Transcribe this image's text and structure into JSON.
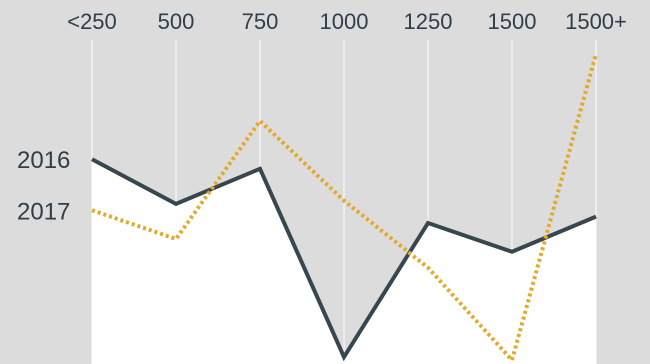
{
  "chart_data": {
    "type": "line",
    "title": "",
    "xlabel": "",
    "ylabel": "",
    "categories": [
      "<250",
      "500",
      "750",
      "1000",
      "1250",
      "1500",
      "1500+"
    ],
    "ylim": [
      0,
      100
    ],
    "grid": "vertical",
    "series": [
      {
        "name": "2016",
        "style": "solid",
        "color": "#37474f",
        "values": [
          62,
          48,
          59,
          0,
          42,
          33,
          44
        ]
      },
      {
        "name": "2017",
        "style": "dotted",
        "color": "#e3a92a",
        "values": [
          46,
          37,
          74,
          49,
          28,
          -1,
          95
        ]
      }
    ]
  },
  "colors": {
    "background": "#dcdcdc",
    "area_fill": "#ffffff",
    "gridline": "#ffffff",
    "text": "#2f3e4a"
  }
}
